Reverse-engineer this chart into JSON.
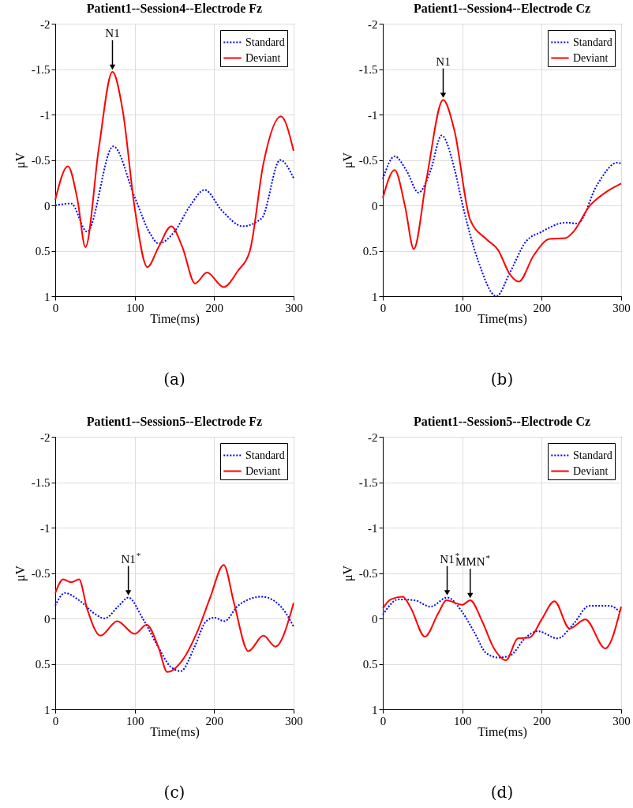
{
  "chart_data": [
    {
      "type": "line",
      "title": "Patient1--Session4--Electrode Fz",
      "xlabel": "Time(ms)",
      "ylabel": "μV",
      "xlim": [
        0,
        300
      ],
      "xticks": [
        0,
        100,
        200,
        300
      ],
      "ylim": [
        1,
        -2
      ],
      "yticks": [
        -2,
        -1.5,
        -1,
        -0.5,
        0,
        0.5,
        1
      ],
      "grid": true,
      "legend": "top right",
      "annotations": [
        {
          "text": "N1",
          "x": 72,
          "y": -1.47
        },
        "(a)"
      ],
      "series": [
        {
          "name": "Standard",
          "color": "#0000ff",
          "line_style": "dotted",
          "x": [
            0,
            20,
            40,
            73,
            100,
            120,
            130,
            150,
            170,
            188,
            210,
            236,
            260,
            283,
            300
          ],
          "values": [
            0,
            -0.02,
            0.29,
            -0.65,
            -0.09,
            0.32,
            0.42,
            0.29,
            0,
            -0.17,
            0.06,
            0.23,
            0.14,
            -0.5,
            -0.3
          ]
        },
        {
          "name": "Deviant",
          "color": "#ff0000",
          "line_style": "solid",
          "x": [
            0,
            16,
            28,
            38,
            55,
            72,
            85,
            100,
            116,
            130,
            146,
            160,
            176,
            191,
            212,
            230,
            245,
            262,
            284,
            300
          ],
          "values": [
            -0.06,
            -0.43,
            -0.06,
            0.46,
            -0.64,
            -1.47,
            -1.04,
            0.03,
            0.68,
            0.46,
            0.23,
            0.46,
            0.86,
            0.74,
            0.9,
            0.72,
            0.5,
            -0.46,
            -0.98,
            -0.6
          ]
        }
      ]
    },
    {
      "type": "line",
      "title": "Patient1--Session4--Electrode Cz",
      "xlabel": "Time(ms)",
      "ylabel": "μV",
      "xlim": [
        0,
        300
      ],
      "xticks": [
        0,
        100,
        200,
        300
      ],
      "ylim": [
        1,
        -2
      ],
      "yticks": [
        -2,
        -1.5,
        -1,
        -0.5,
        0,
        0.5,
        1
      ],
      "grid": true,
      "legend": "top right",
      "annotations": [
        {
          "text": "N1",
          "x": 76,
          "y": -1.16
        },
        "(b)"
      ],
      "series": [
        {
          "name": "Standard",
          "color": "#0000ff",
          "line_style": "dotted",
          "x": [
            0,
            15,
            30,
            45,
            60,
            74,
            90,
            100,
            120,
            143,
            160,
            180,
            200,
            230,
            245,
            270,
            295,
            300
          ],
          "values": [
            -0.29,
            -0.54,
            -0.38,
            -0.14,
            -0.38,
            -0.77,
            -0.41,
            -0.02,
            0.61,
            1,
            0.74,
            0.4,
            0.29,
            0.19,
            0.2,
            -0.23,
            -0.47,
            -0.46
          ]
        },
        {
          "name": "Deviant",
          "color": "#ff0000",
          "line_style": "solid",
          "x": [
            0,
            15,
            28,
            39,
            55,
            76,
            90,
            110,
            130,
            145,
            160,
            171,
            190,
            210,
            230,
            240,
            260,
            280,
            300
          ],
          "values": [
            -0.08,
            -0.39,
            0.01,
            0.48,
            -0.29,
            -1.16,
            -0.83,
            0.16,
            0.37,
            0.49,
            0.76,
            0.84,
            0.55,
            0.37,
            0.36,
            0.29,
            0.01,
            -0.14,
            -0.24
          ]
        }
      ]
    },
    {
      "type": "line",
      "title": "Patient1--Session5--Electrode Fz",
      "xlabel": "Time(ms)",
      "ylabel": "μV",
      "xlim": [
        0,
        300
      ],
      "xticks": [
        0,
        100,
        200,
        300
      ],
      "ylim": [
        1,
        -2
      ],
      "yticks": [
        -2,
        -1.5,
        -1,
        -0.5,
        0,
        0.5,
        1
      ],
      "grid": true,
      "legend": "top right",
      "annotations": [
        {
          "text": "N1$^{*}$",
          "x": 92,
          "y": -0.23
        },
        "(c)"
      ],
      "series": [
        {
          "name": "Standard",
          "color": "#0000ff",
          "line_style": "dotted",
          "x": [
            0,
            12,
            30,
            50,
            62,
            80,
            92,
            110,
            130,
            145,
            158,
            175,
            190,
            200,
            213,
            230,
            260,
            285,
            300
          ],
          "values": [
            -0.14,
            -0.28,
            -0.2,
            -0.05,
            0,
            -0.14,
            -0.23,
            0,
            0.32,
            0.53,
            0.58,
            0.32,
            0.03,
            -0.01,
            0.03,
            -0.14,
            -0.24,
            -0.12,
            0.09
          ]
        },
        {
          "name": "Deviant",
          "color": "#ff0000",
          "line_style": "solid",
          "x": [
            0,
            10,
            20,
            30,
            40,
            57,
            78,
            100,
            115,
            130,
            141,
            160,
            180,
            195,
            212,
            225,
            243,
            262,
            277,
            300
          ],
          "values": [
            -0.28,
            -0.43,
            -0.4,
            -0.43,
            -0.11,
            0.19,
            0.03,
            0.17,
            0.07,
            0.32,
            0.59,
            0.46,
            0.12,
            -0.23,
            -0.59,
            -0.17,
            0.36,
            0.19,
            0.31,
            -0.17
          ]
        }
      ]
    },
    {
      "type": "line",
      "title": "Patient1--Session5--Electrode Cz",
      "xlabel": "Time(ms)",
      "ylabel": "μV",
      "xlim": [
        0,
        300
      ],
      "xticks": [
        0,
        100,
        200,
        300
      ],
      "ylim": [
        1,
        -2
      ],
      "yticks": [
        -2,
        -1.5,
        -1,
        -0.5,
        0,
        0.5,
        1
      ],
      "grid": true,
      "legend": "top right",
      "annotations": [
        {
          "text": "N1$^{*}$",
          "x": 81,
          "y": -0.23
        },
        {
          "text": "MMN$^{*}$",
          "x": 110,
          "y": -0.2
        },
        "(d)"
      ],
      "series": [
        {
          "name": "Standard",
          "color": "#0000ff",
          "line_style": "dotted",
          "x": [
            0,
            20,
            40,
            60,
            81,
            100,
            115,
            130,
            145,
            160,
            180,
            195,
            220,
            240,
            260,
            285,
            300
          ],
          "values": [
            -0.04,
            -0.21,
            -0.2,
            -0.13,
            -0.23,
            -0.07,
            0.15,
            0.38,
            0.43,
            0.41,
            0.21,
            0.14,
            0.22,
            0.06,
            -0.14,
            -0.14,
            -0.06
          ]
        },
        {
          "name": "Deviant",
          "color": "#ff0000",
          "line_style": "solid",
          "x": [
            0,
            10,
            25,
            35,
            53,
            70,
            80,
            100,
            110,
            125,
            140,
            155,
            170,
            185,
            200,
            216,
            235,
            255,
            280,
            300
          ],
          "values": [
            -0.11,
            -0.21,
            -0.24,
            -0.12,
            0.2,
            -0.06,
            -0.2,
            -0.15,
            -0.2,
            0.03,
            0.33,
            0.46,
            0.22,
            0.21,
            0.01,
            -0.19,
            0.11,
            0.01,
            0.33,
            -0.13
          ]
        }
      ]
    }
  ]
}
